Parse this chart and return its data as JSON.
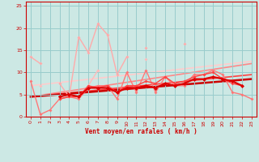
{
  "title": "",
  "xlabel": "Vent moyen/en rafales ( km/h )",
  "bg_color": "#cce8e4",
  "grid_color": "#99cccc",
  "x": [
    0,
    1,
    2,
    3,
    4,
    5,
    6,
    7,
    8,
    9,
    10,
    11,
    12,
    13,
    14,
    15,
    16,
    17,
    18,
    19,
    20,
    21,
    22,
    23
  ],
  "series": [
    {
      "color": "#ffaaaa",
      "lw": 1.0,
      "ms": 2.0,
      "y": [
        13.5,
        12.0,
        null,
        7.5,
        4.5,
        18.0,
        14.5,
        21.0,
        18.5,
        9.5,
        13.5,
        null,
        15.5,
        null,
        null,
        null,
        16.5,
        null,
        null,
        null,
        null,
        null,
        null,
        null
      ]
    },
    {
      "color": "#ffbbbb",
      "lw": 1.0,
      "ms": 2.0,
      "y": [
        null,
        7.0,
        null,
        4.0,
        4.5,
        null,
        7.0,
        10.5,
        null,
        null,
        9.5,
        null,
        13.0,
        null,
        null,
        null,
        null,
        null,
        null,
        null,
        null,
        null,
        null,
        null
      ]
    },
    {
      "color": "#ff7777",
      "lw": 1.0,
      "ms": 2.0,
      "y": [
        8.0,
        0.5,
        1.5,
        4.0,
        4.5,
        4.0,
        6.5,
        7.0,
        7.0,
        4.0,
        10.0,
        5.5,
        10.5,
        5.5,
        9.0,
        7.0,
        7.0,
        9.5,
        9.5,
        10.5,
        9.5,
        5.5,
        5.0,
        4.0
      ]
    },
    {
      "color": "#ff4444",
      "lw": 1.0,
      "ms": 2.0,
      "y": [
        null,
        null,
        null,
        4.0,
        4.5,
        4.5,
        7.0,
        6.5,
        7.0,
        5.5,
        7.0,
        7.0,
        8.0,
        7.5,
        9.0,
        7.5,
        8.0,
        9.0,
        9.5,
        10.0,
        8.5,
        7.5,
        7.0,
        null
      ]
    },
    {
      "color": "#dd0000",
      "lw": 1.5,
      "ms": 2.5,
      "y": [
        null,
        null,
        null,
        4.5,
        5.0,
        4.5,
        6.5,
        6.5,
        6.5,
        5.5,
        6.5,
        6.5,
        7.0,
        6.5,
        7.5,
        7.0,
        7.5,
        8.5,
        8.5,
        9.0,
        8.5,
        8.0,
        7.0,
        null
      ]
    }
  ],
  "regression_lines": [
    {
      "color": "#ffcccc",
      "lw": 1.2,
      "x0": 0,
      "y0": 7.0,
      "x1": 23,
      "y1": 12.5
    },
    {
      "color": "#ff8888",
      "lw": 1.2,
      "x0": 0,
      "y0": 4.5,
      "x1": 23,
      "y1": 12.0
    },
    {
      "color": "#ff4444",
      "lw": 1.2,
      "x0": 0,
      "y0": 4.5,
      "x1": 23,
      "y1": 9.5
    },
    {
      "color": "#cc0000",
      "lw": 1.8,
      "x0": 0,
      "y0": 4.5,
      "x1": 23,
      "y1": 8.5
    }
  ],
  "ylim": [
    0,
    26
  ],
  "xlim": [
    -0.5,
    23.5
  ],
  "yticks": [
    0,
    5,
    10,
    15,
    20,
    25
  ],
  "xticks": [
    0,
    1,
    2,
    3,
    4,
    5,
    6,
    7,
    8,
    9,
    10,
    11,
    12,
    13,
    14,
    15,
    16,
    17,
    18,
    19,
    20,
    21,
    22,
    23
  ]
}
